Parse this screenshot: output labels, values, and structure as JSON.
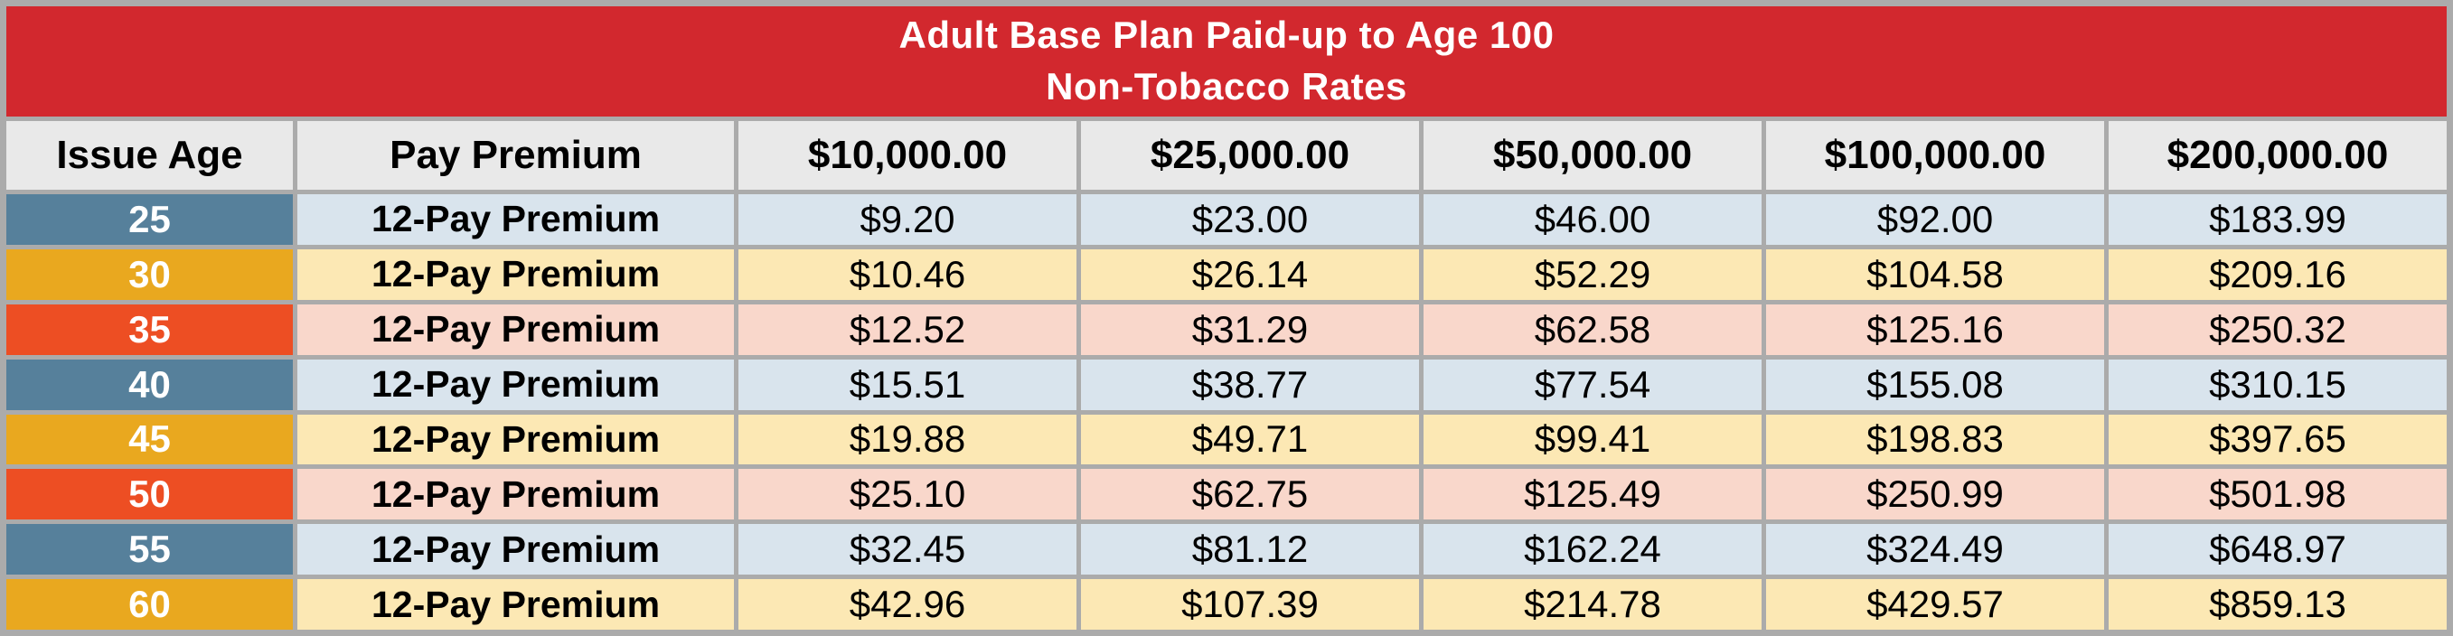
{
  "colors": {
    "frame_gray": "#ababab",
    "banner_red": "#d2282e",
    "banner_text": "#ffffff",
    "header_bg": "#e9e9e9",
    "age_blue": "#56809b",
    "age_gold": "#e9a81f",
    "age_orange": "#ed4e23",
    "row_blue": "#d9e4ed",
    "row_gold": "#fce8b4",
    "row_orange": "#f9d7cb",
    "text_black": "#000000"
  },
  "chart_data": {
    "type": "table",
    "title": "Adult Base Plan Paid-up to Age 100",
    "subtitle": "Non-Tobacco Rates",
    "columns": [
      "Issue Age",
      "Pay Premium",
      "$10,000.00",
      "$25,000.00",
      "$50,000.00",
      "$100,000.00",
      "$200,000.00"
    ],
    "rows": [
      {
        "age": "25",
        "premium_type": "12-Pay Premium",
        "theme": "blue",
        "values": [
          "$9.20",
          "$23.00",
          "$46.00",
          "$92.00",
          "$183.99"
        ]
      },
      {
        "age": "30",
        "premium_type": "12-Pay Premium",
        "theme": "gold",
        "values": [
          "$10.46",
          "$26.14",
          "$52.29",
          "$104.58",
          "$209.16"
        ]
      },
      {
        "age": "35",
        "premium_type": "12-Pay Premium",
        "theme": "orange",
        "values": [
          "$12.52",
          "$31.29",
          "$62.58",
          "$125.16",
          "$250.32"
        ]
      },
      {
        "age": "40",
        "premium_type": "12-Pay Premium",
        "theme": "blue",
        "values": [
          "$15.51",
          "$38.77",
          "$77.54",
          "$155.08",
          "$310.15"
        ]
      },
      {
        "age": "45",
        "premium_type": "12-Pay Premium",
        "theme": "gold",
        "values": [
          "$19.88",
          "$49.71",
          "$99.41",
          "$198.83",
          "$397.65"
        ]
      },
      {
        "age": "50",
        "premium_type": "12-Pay Premium",
        "theme": "orange",
        "values": [
          "$25.10",
          "$62.75",
          "$125.49",
          "$250.99",
          "$501.98"
        ]
      },
      {
        "age": "55",
        "premium_type": "12-Pay Premium",
        "theme": "blue",
        "values": [
          "$32.45",
          "$81.12",
          "$162.24",
          "$324.49",
          "$648.97"
        ]
      },
      {
        "age": "60",
        "premium_type": "12-Pay Premium",
        "theme": "gold",
        "values": [
          "$42.96",
          "$107.39",
          "$214.78",
          "$429.57",
          "$859.13"
        ]
      }
    ]
  }
}
